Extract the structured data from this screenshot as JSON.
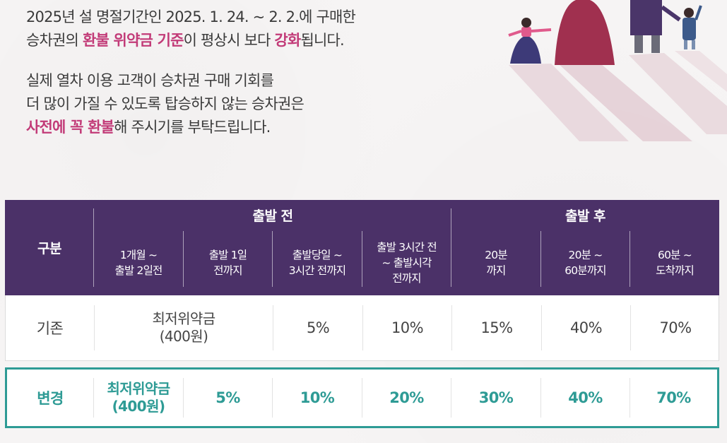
{
  "intro": {
    "p1_l1": "2025년 설 명절기간인 2025. 1. 24. ~ 2. 2.에 구매한",
    "p1_l2_a": "승차권의 ",
    "p1_l2_hl1": "환불 위약금 기준",
    "p1_l2_b": "이 평상시 보다 ",
    "p1_l2_hl2": "강화",
    "p1_l2_c": "됩니다.",
    "p2_l1": "실제 열차 이용 고객이 승차권 구매 기회를",
    "p2_l2": "더 많이 가질 수 있도록  탑승하지 않는 승차권은",
    "p2_l3_hl": "사전에 꼭 환불",
    "p2_l3_b": "해 주시기를 부탁드립니다."
  },
  "table": {
    "row_header": "구분",
    "group_before": "출발 전",
    "group_after": "출발 후",
    "columns": [
      [
        "1개월 ~",
        "출발 2일전"
      ],
      [
        "출발 1일",
        "전까지"
      ],
      [
        "출발당일 ~",
        "3시간 전까지"
      ],
      [
        "출발 3시간 전",
        "~ 출발시각",
        "전까지"
      ],
      [
        "20분",
        "까지"
      ],
      [
        "20분 ~",
        "60분까지"
      ],
      [
        "60분 ~",
        "도착까지"
      ]
    ],
    "old": {
      "label": "기존",
      "merged": [
        "최저위약금",
        "(400원)"
      ],
      "values": [
        "5%",
        "10%",
        "15%",
        "40%",
        "70%"
      ]
    },
    "new": {
      "label": "변경",
      "first": [
        "최저위약금",
        "(400원)"
      ],
      "values": [
        "5%",
        "10%",
        "20%",
        "30%",
        "40%",
        "70%"
      ]
    }
  },
  "colors": {
    "header_bg": "#4b3168",
    "highlight": "#c23b78",
    "teal": "#2e9b95"
  }
}
